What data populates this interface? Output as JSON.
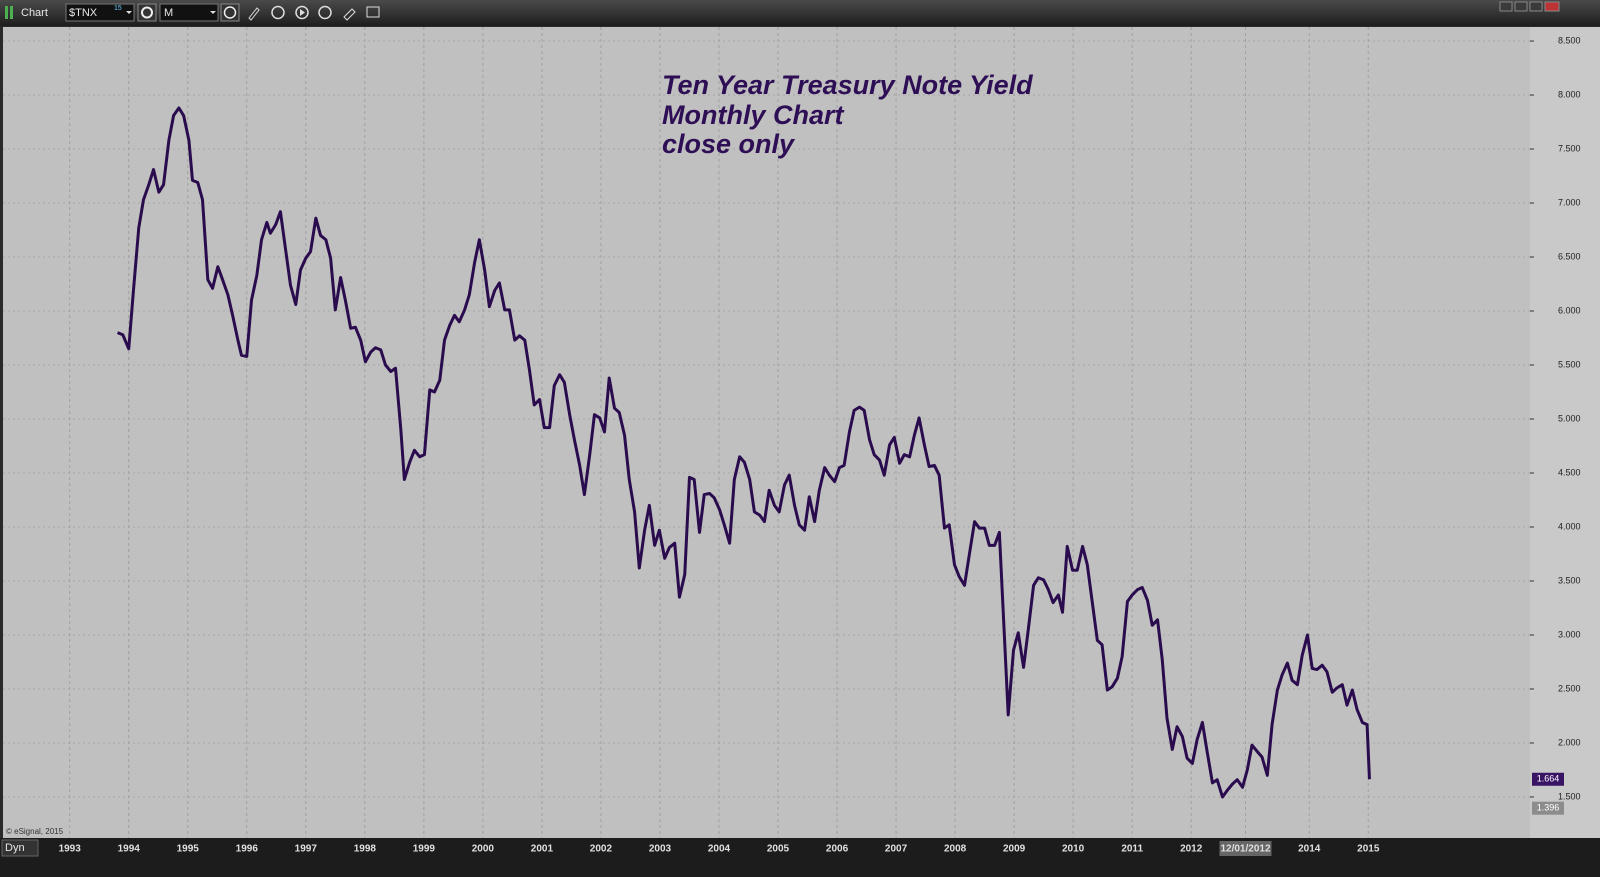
{
  "ui": {
    "window_title": "Chart",
    "symbol": "$TNX",
    "symbol_badge": "15",
    "interval": "M",
    "mode": "Dyn",
    "copyright": "© eSignal, 2015"
  },
  "chart_data": {
    "type": "line",
    "title": [
      "Ten Year Treasury Note Yield",
      "Monthly Chart",
      "close only"
    ],
    "color": "#2a0c4e",
    "grid": true,
    "xlim": [
      1991.87,
      2017.74
    ],
    "ylim": [
      1.12,
      8.63
    ],
    "xticks": [
      1993,
      1994,
      1995,
      1996,
      1997,
      1998,
      1999,
      2000,
      2001,
      2002,
      2003,
      2004,
      2005,
      2006,
      2007,
      2008,
      2009,
      2010,
      2011,
      2012,
      {
        "value": 2012.92,
        "label": "12/01/2012"
      },
      2014,
      2015
    ],
    "yticks": [
      {
        "value": 1.5,
        "label": "1.500"
      },
      {
        "value": 2,
        "label": "2.000"
      },
      {
        "value": 2.5,
        "label": "2.500"
      },
      {
        "value": 3,
        "label": "3.000"
      },
      {
        "value": 3.5,
        "label": "3.500"
      },
      {
        "value": 4,
        "label": "4.000"
      },
      {
        "value": 4.5,
        "label": "4.500"
      },
      {
        "value": 5,
        "label": "5.000"
      },
      {
        "value": 5.5,
        "label": "5.500"
      },
      {
        "value": 6,
        "label": "6.000"
      },
      {
        "value": 6.5,
        "label": "6.500"
      },
      {
        "value": 7,
        "label": "7.000"
      },
      {
        "value": 7.5,
        "label": "7.500"
      },
      {
        "value": 8,
        "label": "8.000"
      },
      {
        "value": 8.5,
        "label": "8.500"
      }
    ],
    "price_markers": [
      {
        "value": 1.664,
        "label": "1.664",
        "color": "#3a1464"
      },
      {
        "value": 1.396,
        "label": "1.396",
        "color": "#8c8c8c"
      }
    ],
    "x": [
      1993.81,
      1993.9,
      1994.0,
      1994.08,
      1994.17,
      1994.25,
      1994.34,
      1994.42,
      1994.51,
      1994.59,
      1994.68,
      1994.76,
      1994.85,
      1994.93,
      1995.02,
      1995.08,
      1995.17,
      1995.25,
      1995.34,
      1995.42,
      1995.51,
      1995.59,
      1995.68,
      1995.76,
      1995.85,
      1995.91,
      1996.0,
      1996.08,
      1996.17,
      1996.25,
      1996.34,
      1996.4,
      1996.49,
      1996.57,
      1996.66,
      1996.74,
      1996.83,
      1996.91,
      1997.0,
      1997.08,
      1997.17,
      1997.25,
      1997.34,
      1997.42,
      1997.5,
      1997.59,
      1997.67,
      1997.76,
      1997.84,
      1997.93,
      1998.01,
      1998.1,
      1998.18,
      1998.27,
      1998.35,
      1998.44,
      1998.52,
      1998.61,
      1998.67,
      1998.76,
      1998.84,
      1998.93,
      1999.01,
      1999.1,
      1999.18,
      1999.27,
      1999.35,
      1999.44,
      1999.52,
      1999.6,
      1999.69,
      1999.77,
      1999.86,
      1999.94,
      2000.03,
      2000.11,
      2000.2,
      2000.28,
      2000.37,
      2000.45,
      2000.54,
      2000.62,
      2000.71,
      2000.79,
      2000.87,
      2000.96,
      2001.04,
      2001.13,
      2001.21,
      2001.3,
      2001.38,
      2001.47,
      2001.55,
      2001.64,
      2001.72,
      2001.81,
      2001.89,
      2001.98,
      2002.06,
      2002.14,
      2002.23,
      2002.31,
      2002.4,
      2002.48,
      2002.57,
      2002.65,
      2002.74,
      2002.82,
      2002.91,
      2002.99,
      2003.08,
      2003.16,
      2003.25,
      2003.33,
      2003.42,
      2003.5,
      2003.58,
      2003.67,
      2003.75,
      2003.84,
      2003.92,
      2004.01,
      2004.09,
      2004.18,
      2004.26,
      2004.35,
      2004.43,
      2004.52,
      2004.6,
      2004.69,
      2004.77,
      2004.85,
      2004.94,
      2005.02,
      2005.11,
      2005.19,
      2005.28,
      2005.36,
      2005.45,
      2005.53,
      2005.62,
      2005.7,
      2005.79,
      2005.87,
      2005.96,
      2006.04,
      2006.12,
      2006.21,
      2006.29,
      2006.38,
      2006.46,
      2006.55,
      2006.63,
      2006.72,
      2006.8,
      2006.89,
      2006.97,
      2007.06,
      2007.14,
      2007.23,
      2007.31,
      2007.39,
      2007.48,
      2007.56,
      2007.65,
      2007.73,
      2007.82,
      2007.9,
      2007.99,
      2008.07,
      2008.16,
      2008.24,
      2008.33,
      2008.41,
      2008.5,
      2008.58,
      2008.67,
      2008.75,
      2008.83,
      2008.9,
      2008.99,
      2009.07,
      2009.16,
      2009.24,
      2009.33,
      2009.41,
      2009.5,
      2009.58,
      2009.66,
      2009.75,
      2009.82,
      2009.9,
      2009.99,
      2010.07,
      2010.16,
      2010.24,
      2010.32,
      2010.41,
      2010.49,
      2010.58,
      2010.66,
      2010.75,
      2010.83,
      2010.92,
      2011.0,
      2011.09,
      2011.17,
      2011.26,
      2011.34,
      2011.43,
      2011.51,
      2011.59,
      2011.68,
      2011.76,
      2011.85,
      2011.93,
      2012.02,
      2012.1,
      2012.19,
      2012.27,
      2012.36,
      2012.44,
      2012.53,
      2012.61,
      2012.7,
      2012.78,
      2012.87,
      2012.95,
      2013.03,
      2013.12,
      2013.2,
      2013.29,
      2013.37,
      2013.46,
      2013.54,
      2013.63,
      2013.71,
      2013.8,
      2013.88,
      2013.97,
      2014.05,
      2014.13,
      2014.22,
      2014.3,
      2014.39,
      2014.47,
      2014.56,
      2014.64,
      2014.73,
      2014.81,
      2014.9,
      2014.98,
      2015.02
    ],
    "values": [
      5.8,
      5.78,
      5.65,
      6.19,
      6.77,
      7.03,
      7.17,
      7.31,
      7.1,
      7.17,
      7.58,
      7.81,
      7.88,
      7.81,
      7.58,
      7.21,
      7.19,
      7.03,
      6.29,
      6.21,
      6.41,
      6.29,
      6.15,
      5.96,
      5.73,
      5.59,
      5.58,
      6.1,
      6.33,
      6.66,
      6.82,
      6.72,
      6.8,
      6.92,
      6.56,
      6.24,
      6.06,
      6.38,
      6.49,
      6.55,
      6.86,
      6.7,
      6.66,
      6.49,
      6.01,
      6.31,
      6.1,
      5.84,
      5.85,
      5.73,
      5.53,
      5.62,
      5.66,
      5.64,
      5.5,
      5.44,
      5.47,
      4.9,
      4.44,
      4.6,
      4.71,
      4.65,
      4.67,
      5.27,
      5.25,
      5.36,
      5.73,
      5.87,
      5.96,
      5.9,
      6.01,
      6.15,
      6.45,
      6.66,
      6.38,
      6.04,
      6.19,
      6.26,
      6.01,
      6.01,
      5.73,
      5.77,
      5.73,
      5.45,
      5.13,
      5.18,
      4.92,
      4.92,
      5.31,
      5.41,
      5.34,
      5.04,
      4.81,
      4.57,
      4.3,
      4.67,
      5.04,
      5.01,
      4.88,
      5.38,
      5.1,
      5.06,
      4.85,
      4.44,
      4.14,
      3.62,
      3.97,
      4.2,
      3.83,
      3.97,
      3.71,
      3.81,
      3.85,
      3.35,
      3.56,
      4.46,
      4.44,
      3.95,
      4.3,
      4.31,
      4.27,
      4.16,
      4.02,
      3.85,
      4.44,
      4.65,
      4.6,
      4.44,
      4.14,
      4.11,
      4.05,
      4.34,
      4.2,
      4.14,
      4.39,
      4.48,
      4.2,
      4.02,
      3.97,
      4.28,
      4.05,
      4.34,
      4.55,
      4.48,
      4.42,
      4.55,
      4.57,
      4.88,
      5.08,
      5.11,
      5.08,
      4.81,
      4.67,
      4.62,
      4.48,
      4.76,
      4.83,
      4.59,
      4.67,
      4.65,
      4.85,
      5.01,
      4.76,
      4.56,
      4.57,
      4.48,
      3.99,
      4.02,
      3.65,
      3.54,
      3.46,
      3.74,
      4.05,
      3.99,
      3.99,
      3.83,
      3.83,
      3.95,
      3.05,
      2.26,
      2.86,
      3.02,
      2.7,
      3.05,
      3.46,
      3.53,
      3.51,
      3.42,
      3.3,
      3.37,
      3.21,
      3.82,
      3.6,
      3.6,
      3.82,
      3.65,
      3.32,
      2.95,
      2.91,
      2.49,
      2.52,
      2.6,
      2.8,
      3.31,
      3.37,
      3.42,
      3.44,
      3.32,
      3.09,
      3.14,
      2.77,
      2.23,
      1.94,
      2.15,
      2.06,
      1.86,
      1.81,
      2.03,
      2.19,
      1.92,
      1.63,
      1.66,
      1.5,
      1.56,
      1.62,
      1.66,
      1.59,
      1.75,
      1.98,
      1.92,
      1.87,
      1.7,
      2.17,
      2.49,
      2.63,
      2.74,
      2.58,
      2.54,
      2.81,
      3.0,
      2.69,
      2.68,
      2.72,
      2.66,
      2.47,
      2.51,
      2.54,
      2.35,
      2.49,
      2.31,
      2.19,
      2.17,
      1.664
    ]
  }
}
